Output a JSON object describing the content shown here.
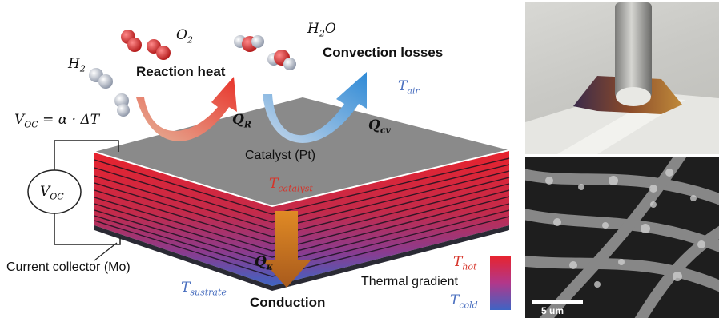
{
  "labels": {
    "h2": "H",
    "h2_sub": "2",
    "o2": "O",
    "o2_sub": "2",
    "h2o_a": "H",
    "h2o_sub": "2",
    "h2o_b": "O",
    "reaction_heat": "Reaction heat",
    "convection_losses": "Convection losses",
    "t_air": "T",
    "t_air_sub": "air",
    "voc_eq_lhs": "V",
    "voc_eq_lhs_sub": "OC",
    "voc_eq_rhs": " = α · ΔT",
    "q_r": "Q",
    "q_r_sub": "R",
    "q_cv": "Q",
    "q_cv_sub": "cv",
    "catalyst": "Catalyst (Pt)",
    "t_catalyst": "T",
    "t_catalyst_sub": "catalyst",
    "voc_meter": "V",
    "voc_meter_sub": "OC",
    "q_k": "Q",
    "q_k_sub": "κ",
    "current_collector": "Current collector (Mo)",
    "t_sustrate": "T",
    "t_sustrate_sub": "sustrate",
    "conduction": "Conduction",
    "t_hot": "T",
    "t_hot_sub": "hot",
    "thermal_gradient": "Thermal gradient",
    "t_cold": "T",
    "t_cold_sub": "cold",
    "scale_bar": "5 um"
  },
  "colors": {
    "hot": "#e8232d",
    "cold": "#3e64c4",
    "catalyst_top": "#8a8a8a",
    "reaction_arrow": "#e8482a",
    "convection_arrow": "#3d8fd8",
    "conduction_arrow": "#c96a18"
  }
}
